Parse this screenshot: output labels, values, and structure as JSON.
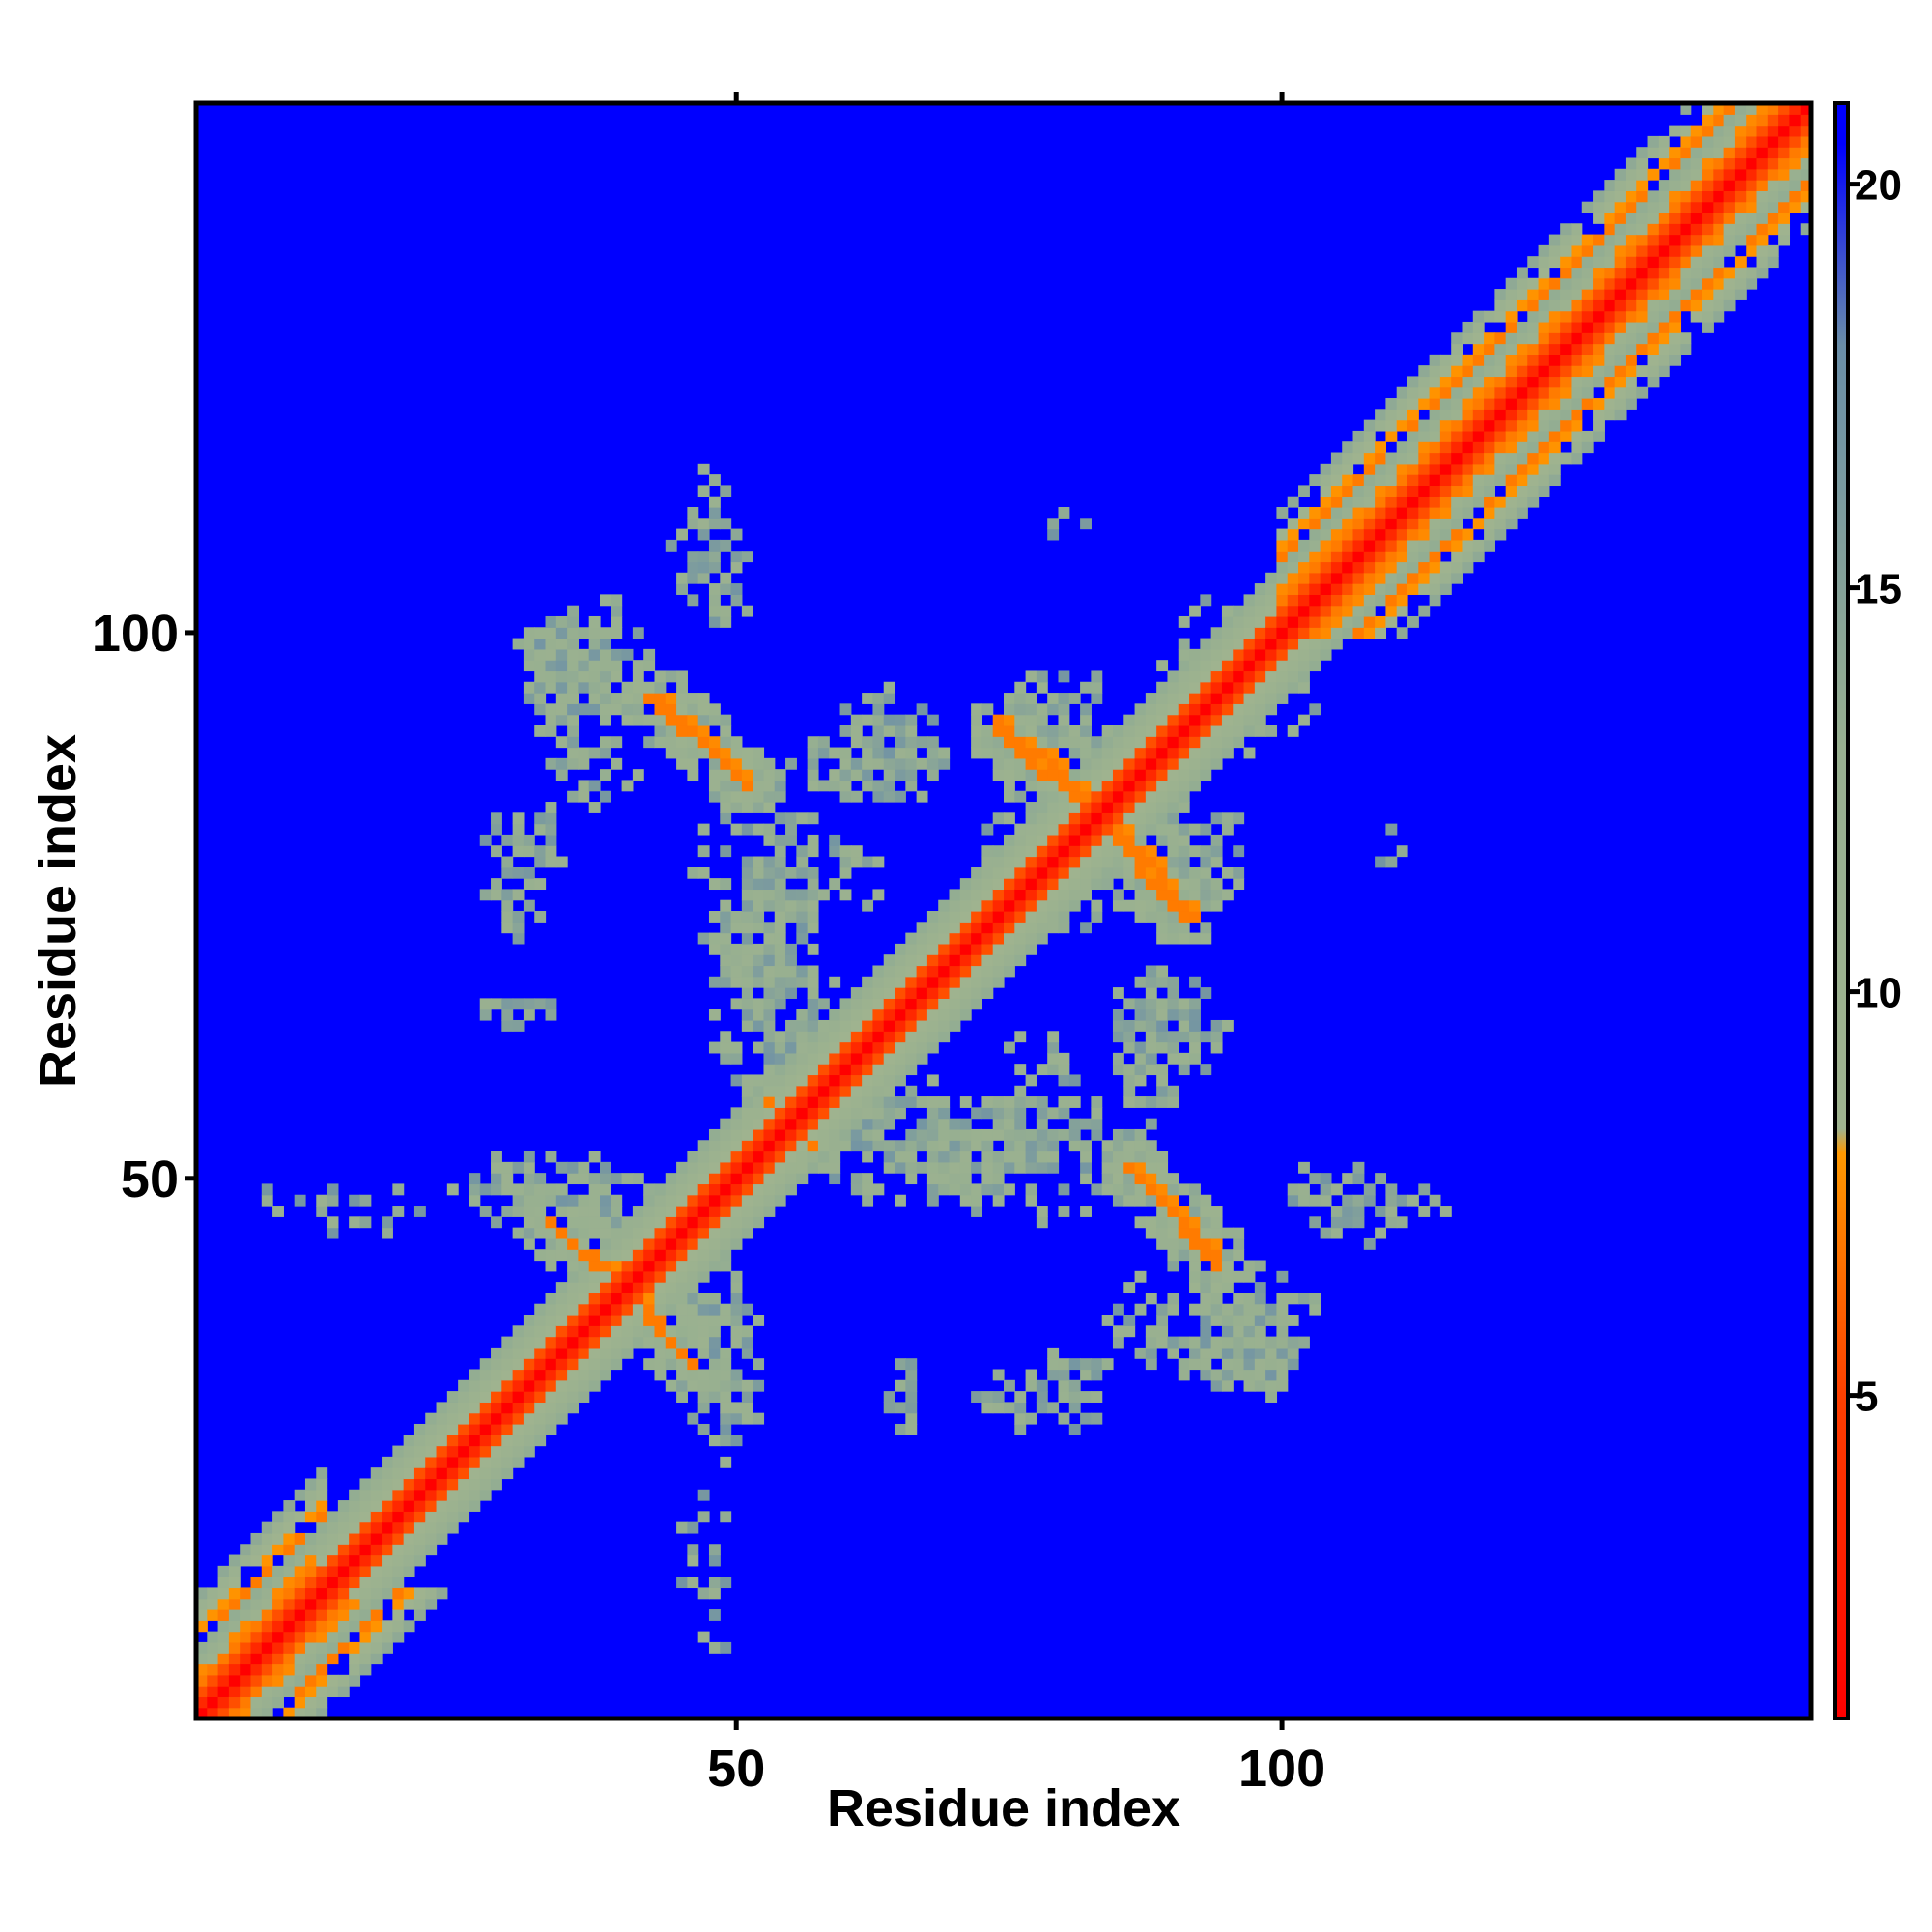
{
  "chart_data": {
    "type": "heatmap",
    "title": "",
    "xlabel": "Residue index",
    "ylabel": "Residue index",
    "n_residues": 148,
    "xlim": [
      1,
      148
    ],
    "ylim": [
      1,
      148
    ],
    "x_ticks": [
      50,
      100
    ],
    "y_ticks": [
      50,
      100
    ],
    "colorbar": {
      "min": 1,
      "max": 21,
      "ticks": [
        5,
        10,
        15,
        20
      ],
      "stops": [
        {
          "value": 1,
          "color": "#ff0000"
        },
        {
          "value": 5,
          "color": "#ff4000"
        },
        {
          "value": 8,
          "color": "#ff9900"
        },
        {
          "value": 8.3,
          "color": "#9fb38f"
        },
        {
          "value": 13,
          "color": "#98b090"
        },
        {
          "value": 18,
          "color": "#6a8ea8"
        },
        {
          "value": 20.5,
          "color": "#0000ff"
        }
      ]
    },
    "background_value": 21,
    "diagonal_band": [
      {
        "offset": 0,
        "value": 1
      },
      {
        "offset": 1,
        "value": 3.5
      },
      {
        "offset": 2,
        "value": 5.5
      },
      {
        "offset": 3,
        "value": 8.5
      },
      {
        "offset": 4,
        "value": 10.5
      },
      {
        "offset": 5,
        "value": 12.5
      },
      {
        "offset": 6,
        "value": 13.5
      }
    ],
    "helix_regions": [
      {
        "start": 1,
        "end": 12
      },
      {
        "start": 100,
        "end": 148
      }
    ],
    "contact_lines": [
      {
        "i": [
          33,
          43
        ],
        "j": [
          46,
          37
        ],
        "value": 7
      },
      {
        "i": [
          42,
          50
        ],
        "j": [
          94,
          87
        ],
        "value": 7
      },
      {
        "i": [
          55,
          57
        ],
        "j": [
          56,
          53
        ],
        "value": 7
      },
      {
        "i": [
          74,
          82
        ],
        "j": [
          92,
          85
        ],
        "value": 7
      },
      {
        "i": [
          83,
          91
        ],
        "j": [
          83,
          74
        ],
        "value": 7
      },
      {
        "i": [
          86,
          94
        ],
        "j": [
          51,
          43
        ],
        "value": 7
      }
    ],
    "contact_patches": [
      {
        "i": 35,
        "j": 97,
        "ri": 6,
        "rj": 5,
        "density": 0.75
      },
      {
        "i": 47,
        "j": 108,
        "ri": 3,
        "rj": 7,
        "density": 0.5
      },
      {
        "i": 31,
        "j": 81,
        "ri": 4,
        "rj": 4,
        "density": 0.6
      },
      {
        "i": 30,
        "j": 65,
        "ri": 4,
        "rj": 2,
        "density": 0.5
      },
      {
        "i": 33,
        "j": 49,
        "ri": 9,
        "rj": 4,
        "density": 0.55
      },
      {
        "i": 47,
        "j": 35,
        "ri": 4,
        "rj": 6,
        "density": 0.55
      },
      {
        "i": 52,
        "j": 78,
        "ri": 6,
        "rj": 12,
        "density": 0.45
      },
      {
        "i": 63,
        "j": 88,
        "ri": 7,
        "rj": 4,
        "density": 0.6
      },
      {
        "i": 55,
        "j": 68,
        "ri": 4,
        "rj": 10,
        "density": 0.4
      },
      {
        "i": 68,
        "j": 52,
        "ri": 10,
        "rj": 5,
        "density": 0.55
      },
      {
        "i": 78,
        "j": 58,
        "ri": 4,
        "rj": 8,
        "density": 0.45
      },
      {
        "i": 90,
        "j": 64,
        "ri": 5,
        "rj": 6,
        "density": 0.55
      },
      {
        "i": 78,
        "j": 80,
        "ri": 6,
        "rj": 6,
        "density": 0.5
      },
      {
        "i": 92,
        "j": 80,
        "ri": 5,
        "rj": 5,
        "density": 0.55
      },
      {
        "i": 94,
        "j": 37,
        "ri": 10,
        "rj": 6,
        "density": 0.55
      },
      {
        "i": 75,
        "j": 30,
        "ri": 4,
        "rj": 4,
        "density": 0.5
      },
      {
        "i": 97,
        "j": 95,
        "ri": 7,
        "rj": 6,
        "density": 0.45
      },
      {
        "i": 105,
        "j": 49,
        "ri": 5,
        "rj": 3,
        "density": 0.45
      },
      {
        "i": 110,
        "j": 80,
        "ri": 2,
        "rj": 2,
        "density": 0.45
      },
      {
        "i": 8,
        "j": 48,
        "ri": 3,
        "rj": 2,
        "density": 0.35
      },
      {
        "i": 47,
        "j": 17,
        "ri": 3,
        "rj": 6,
        "density": 0.25
      }
    ]
  }
}
